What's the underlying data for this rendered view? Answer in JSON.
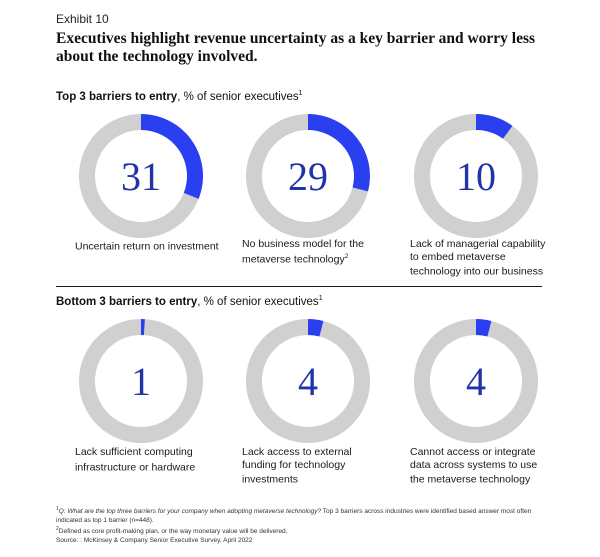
{
  "exhibit_label": "Exhibit 10",
  "title": "Executives highlight revenue uncertainty as a key barrier and worry less about the technology involved.",
  "colors": {
    "accent": "#2a3ff0",
    "track": "#d0d0d0",
    "number": "#2233aa"
  },
  "chart_data": [
    {
      "type": "pie",
      "title": "Top 3 barriers to entry",
      "title_unit": ", % of senior executives",
      "title_sup": "1",
      "categories": [
        "Uncertain return on investment",
        "No business model for the metaverse technology",
        "Lack of managerial capability to embed metaverse technology into our business"
      ],
      "values": [
        31,
        29,
        10
      ],
      "value_labels": [
        "31",
        "29",
        "10"
      ],
      "label_sups": [
        "",
        "2",
        ""
      ]
    },
    {
      "type": "pie",
      "title": "Bottom 3 barriers to entry",
      "title_unit": ", % of senior executives",
      "title_sup": "1",
      "categories": [
        "Lack sufficient computing infrastructure or hardware",
        "Lack access to external funding for technology investments",
        "Cannot access or integrate data across systems to use the metaverse technology"
      ],
      "values": [
        1,
        4,
        4
      ],
      "value_labels": [
        "1",
        "4",
        "4"
      ],
      "label_sups": [
        "",
        "",
        ""
      ]
    }
  ],
  "footnotes": {
    "note1_sup": "1",
    "note1_question": "Q: What are the top three barriers for your company when adopting metaverse technology?",
    "note1_rest": " Top 3 barriers across industries were identified based answer most often indicated as top 1 barrier (n=448).",
    "note2_sup": "2",
    "note2": "Defined as core profit-making plan, or the way monetary value will be delivered.",
    "source": "Source: : McKinsey & Company Senior Executive Survey, April 2022"
  }
}
